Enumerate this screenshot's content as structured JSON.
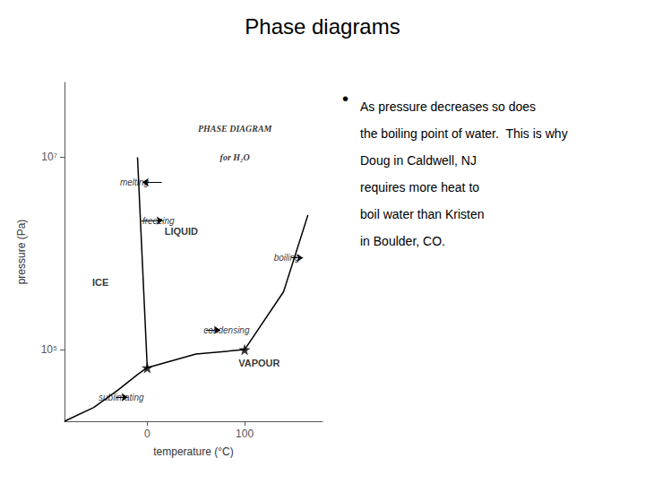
{
  "chart_data": {
    "type": "line",
    "title": "Phase diagrams",
    "xlabel": "temperature (°C)",
    "ylabel": "pressure (Pa)",
    "log": "y",
    "grid": false,
    "xlim": [
      -85,
      180
    ],
    "ylim": [
      18000,
      60000000
    ],
    "xticks": [
      0,
      100
    ],
    "yticks": [
      {
        "value": 100000,
        "label": "10⁵"
      },
      {
        "value": 10000000,
        "label": "10⁷"
      }
    ],
    "series": [
      {
        "type": "line",
        "color": "#000000",
        "x": [
          -10.0,
          0.0
        ],
        "values": [
          10000000,
          65000
        ]
      },
      {
        "type": "line",
        "color": "#000000",
        "x": [
          0.0,
          50,
          100,
          140,
          165
        ],
        "values": [
          65000,
          90000,
          100000,
          400000,
          2500000
        ]
      },
      {
        "type": "line",
        "color": "#000000",
        "x": [
          -85,
          -55,
          -30,
          -10,
          0.0
        ],
        "values": [
          18000,
          25000,
          38000,
          55000,
          65000
        ]
      },
      {
        "type": "scatter",
        "marker": "star",
        "color": "#000000",
        "x": [
          0.0,
          100
        ],
        "values": [
          65000,
          100000
        ]
      }
    ],
    "inset_title": [
      {
        "text": "PHASE DIAGRAM",
        "x": 90,
        "y": 18000000
      },
      {
        "text": "for H₂O",
        "x": 90,
        "y": 9000000
      }
    ],
    "region_labels": [
      {
        "text": "ICE",
        "x": -48,
        "y": 450000
      },
      {
        "text": "LIQUID",
        "x": 35,
        "y": 1500000
      },
      {
        "text": "VAPOUR",
        "x": 115,
        "y": 65000
      }
    ],
    "annotations": [
      {
        "text": "melting",
        "x": -28,
        "y": 5500000,
        "arrow": {
          "from": [
            15,
            5500000
          ],
          "to": [
            -5,
            5500000
          ]
        }
      },
      {
        "text": "freezing",
        "x": -5,
        "y": 2200000,
        "arrow": {
          "from": [
            -6,
            2200000
          ],
          "to": [
            16,
            2200000
          ]
        }
      },
      {
        "text": "boiling",
        "x": 130,
        "y": 900000,
        "arrow": {
          "from": [
            148,
            900000
          ],
          "to": [
            160,
            900000
          ]
        }
      },
      {
        "text": "condensing",
        "x": 105,
        "y": 160000,
        "arrow": {
          "from": [
            60,
            160000
          ],
          "to": [
            75,
            160000
          ]
        }
      },
      {
        "text": "sublimating",
        "x": -50,
        "y": 32000,
        "arrow": {
          "from": [
            -32,
            32000
          ],
          "to": [
            -20,
            32000
          ]
        }
      }
    ],
    "bullet": "•",
    "bullet_text": [
      "As pressure decreases so does",
      "the boiling point of water.  This is why",
      "Doug in Caldwell, NJ",
      "requires more heat to",
      "boil water than Kristen",
      "in Boulder, CO."
    ]
  }
}
